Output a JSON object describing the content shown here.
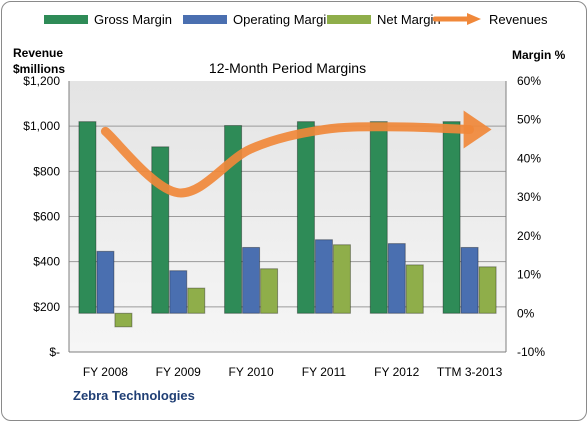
{
  "chart_data": {
    "type": "bar",
    "title": "12-Month Period Margins",
    "company": "Zebra Technologies",
    "left_axis": {
      "label_line1": "Revenue",
      "label_line2": "$millions",
      "ticks": [
        "$1,200",
        "$1,000",
        "$800",
        "$600",
        "$400",
        "$200",
        "$-"
      ],
      "ylim": [
        0,
        1200
      ]
    },
    "right_axis": {
      "label": "Margin %",
      "ticks": [
        "60%",
        "50%",
        "40%",
        "30%",
        "20%",
        "10%",
        "0%",
        "-10%"
      ],
      "ylim": [
        -10,
        60
      ]
    },
    "categories": [
      "FY 2008",
      "FY 2009",
      "FY 2010",
      "FY 2011",
      "FY 2012",
      "TTM 3-2013"
    ],
    "series": [
      {
        "name": "Gross Margin",
        "axis": "right",
        "kind": "bar",
        "color": "#2e8b57",
        "values": [
          49.5,
          43,
          48.5,
          49.5,
          49.5,
          49.5
        ]
      },
      {
        "name": "Operating Margin",
        "axis": "right",
        "kind": "bar",
        "color": "#4a6fb0",
        "values": [
          16,
          11,
          17,
          19,
          18,
          17
        ]
      },
      {
        "name": "Net Margin",
        "axis": "right",
        "kind": "bar",
        "color": "#8fae4a",
        "values": [
          -3.5,
          6.5,
          11.5,
          17.7,
          12.5,
          12
        ]
      },
      {
        "name": "Revenues",
        "axis": "left",
        "kind": "line",
        "color": "#f0883a",
        "values": [
          977,
          705,
          900,
          985,
          997,
          985
        ]
      }
    ],
    "grid": true,
    "legend_position": "top"
  }
}
